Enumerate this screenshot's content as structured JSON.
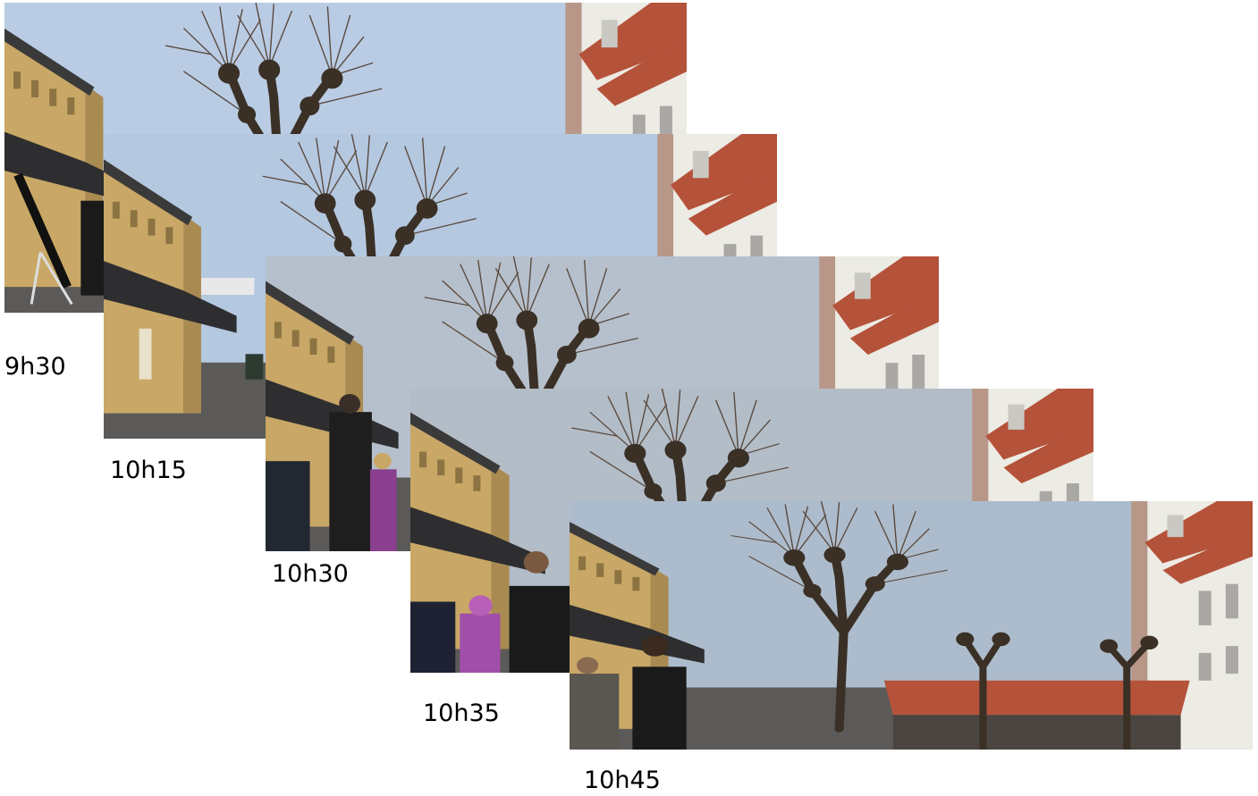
{
  "photos": [
    {
      "time_label": "9h30"
    },
    {
      "time_label": "10h15"
    },
    {
      "time_label": "10h30"
    },
    {
      "time_label": "10h35"
    },
    {
      "time_label": "10h45"
    }
  ],
  "colors": {
    "sky_clear": "#b9cce4",
    "sky_haze": "#b3bdc8",
    "building_ochre": "#c9a766",
    "roof_red": "#b5523a",
    "white_building": "#ecebe4",
    "tree_dark": "#3a3026"
  }
}
